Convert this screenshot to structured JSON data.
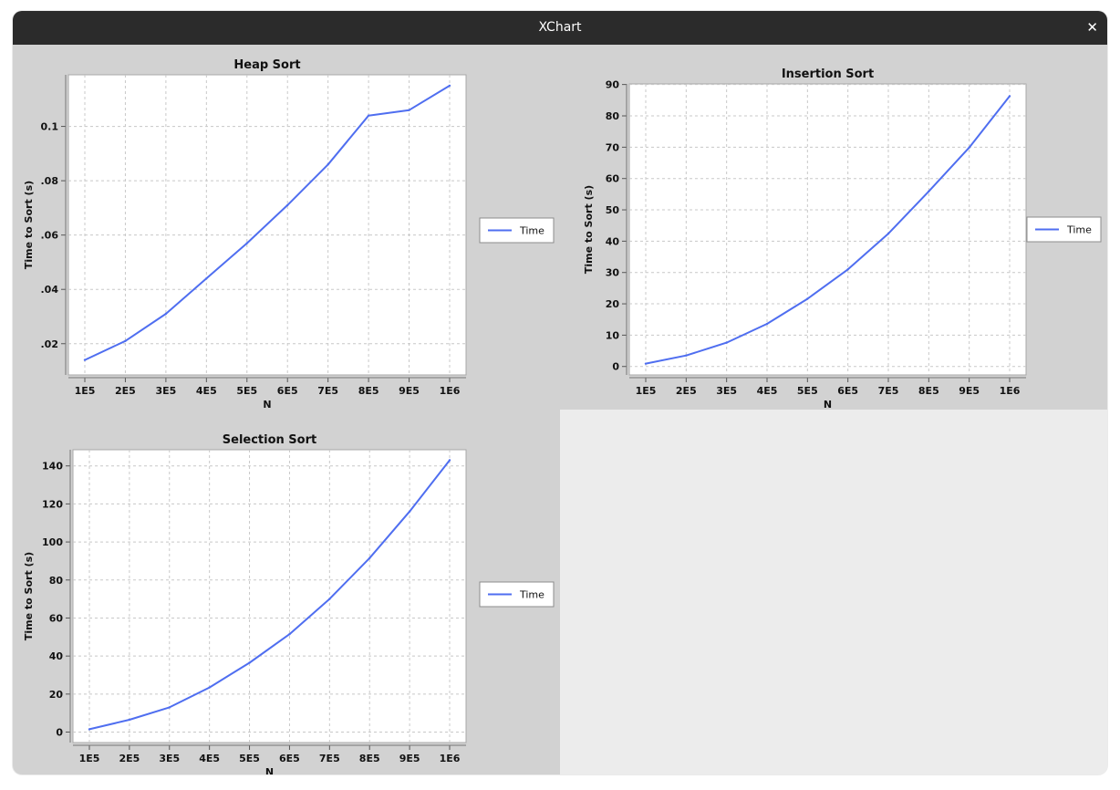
{
  "window": {
    "title": "XChart",
    "close_symbol": "✕"
  },
  "colors": {
    "series": "#4f6ef0",
    "plot_bg": "#ffffff",
    "panel_bg": "#d2d2d2",
    "grid": "#c8c8c8"
  },
  "chart_data": [
    {
      "type": "line",
      "title": "Heap Sort",
      "xlabel": "N",
      "ylabel": "Time to Sort (s)",
      "x": [
        1,
        2,
        3,
        4,
        5,
        6,
        7,
        8,
        9,
        10
      ],
      "x_tick_labels": [
        "1E5",
        "2E5",
        "3E5",
        "4E5",
        "5E5",
        "6E5",
        "7E5",
        "8E5",
        "9E5",
        "1E6"
      ],
      "ylim": [
        0.0085,
        0.119
      ],
      "y_ticks": [
        0.02,
        0.04,
        0.06,
        0.08,
        0.1
      ],
      "y_tick_labels": [
        ".02",
        ".04",
        ".06",
        ".08",
        "0.1"
      ],
      "series": [
        {
          "name": "Time",
          "values": [
            0.014,
            0.021,
            0.031,
            0.044,
            0.057,
            0.071,
            0.086,
            0.104,
            0.106,
            0.115
          ]
        }
      ],
      "grid": true,
      "legend": "right"
    },
    {
      "type": "line",
      "title": "Insertion Sort",
      "xlabel": "N",
      "ylabel": "Time to Sort (s)",
      "x": [
        1,
        2,
        3,
        4,
        5,
        6,
        7,
        8,
        9,
        10
      ],
      "x_tick_labels": [
        "1E5",
        "2E5",
        "3E5",
        "4E5",
        "5E5",
        "6E5",
        "7E5",
        "8E5",
        "9E5",
        "1E6"
      ],
      "ylim": [
        -2.7,
        90.2
      ],
      "y_ticks": [
        0,
        10,
        20,
        30,
        40,
        50,
        60,
        70,
        80,
        90
      ],
      "y_tick_labels": [
        "0",
        "10",
        "20",
        "30",
        "40",
        "50",
        "60",
        "70",
        "80",
        "90"
      ],
      "series": [
        {
          "name": "Time",
          "values": [
            0.9,
            3.5,
            7.6,
            13.6,
            21.6,
            31.0,
            42.4,
            55.9,
            69.9,
            86.3
          ]
        }
      ],
      "grid": true,
      "legend": "right"
    },
    {
      "type": "line",
      "title": "Selection Sort",
      "xlabel": "N",
      "ylabel": "Time to Sort (s)",
      "x": [
        1,
        2,
        3,
        4,
        5,
        6,
        7,
        8,
        9,
        10
      ],
      "x_tick_labels": [
        "1E5",
        "2E5",
        "3E5",
        "4E5",
        "5E5",
        "6E5",
        "7E5",
        "8E5",
        "9E5",
        "1E6"
      ],
      "ylim": [
        -5.5,
        148.5
      ],
      "y_ticks": [
        0,
        20,
        40,
        60,
        80,
        100,
        120,
        140
      ],
      "y_tick_labels": [
        "0",
        "20",
        "40",
        "60",
        "80",
        "100",
        "120",
        "140"
      ],
      "series": [
        {
          "name": "Time",
          "values": [
            1.5,
            6.5,
            13.0,
            23.5,
            36.5,
            51.5,
            70.0,
            91.5,
            116.0,
            143.0
          ]
        }
      ],
      "grid": true,
      "legend": "right"
    }
  ]
}
